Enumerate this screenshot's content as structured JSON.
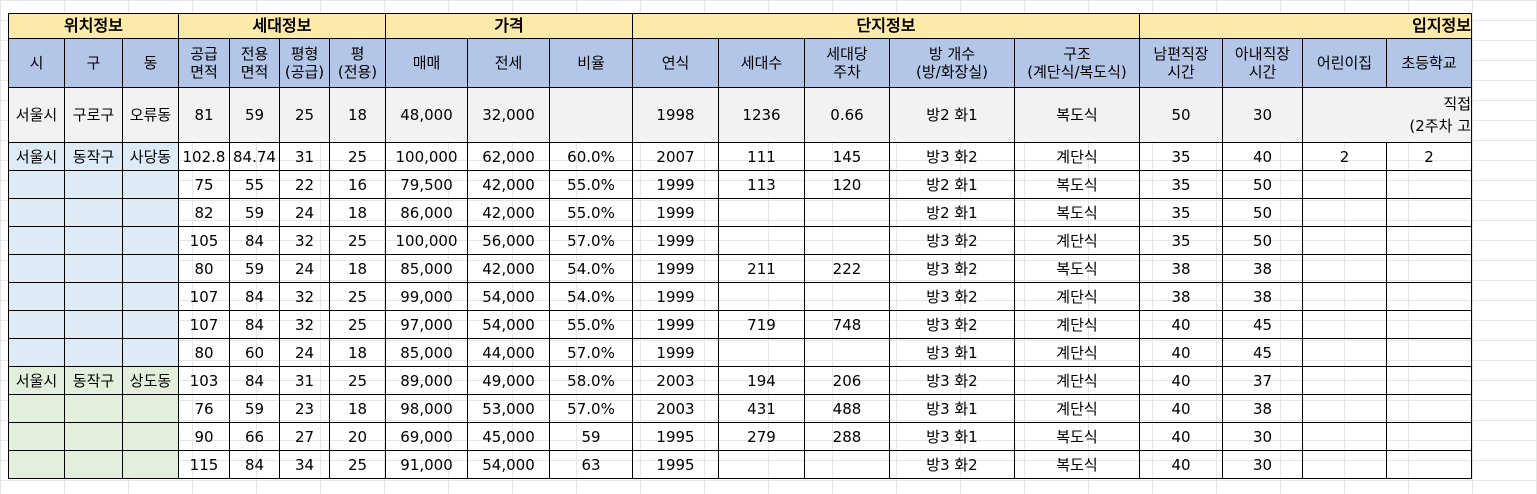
{
  "groups": {
    "location": "위치정보",
    "household": "세대정보",
    "price": "가격",
    "complex": "단지정보",
    "site": "입지정보"
  },
  "headers": {
    "si": "시",
    "gu": "구",
    "dong": "동",
    "supply_area_1": "공급",
    "supply_area_2": "면적",
    "exclusive_area_1": "전용",
    "exclusive_area_2": "면적",
    "pyeong_supply_1": "평형",
    "pyeong_supply_2": "(공급)",
    "pyeong_excl_1": "평",
    "pyeong_excl_2": "(전용)",
    "sale": "매매",
    "jeonse": "전세",
    "ratio": "비율",
    "year": "연식",
    "households": "세대수",
    "parking_1": "세대당",
    "parking_2": "주차",
    "rooms_1": "방 개수",
    "rooms_2": "(방/화장실)",
    "structure_1": "구조",
    "structure_2": "(계단식/복도식)",
    "husband_1": "남편직장",
    "husband_2": "시간",
    "wife_1": "아내직장",
    "wife_2": "시간",
    "daycare": "어린이집",
    "elementary": "초등학교"
  },
  "example_row": {
    "si": "서울시",
    "gu": "구로구",
    "dong": "오류동",
    "supply": "81",
    "excl": "59",
    "py_supply": "25",
    "py_excl": "18",
    "sale": "48,000",
    "jeonse": "32,000",
    "ratio": "",
    "year": "1998",
    "households": "1236",
    "parking": "0.66",
    "rooms": "방2 화1",
    "structure": "복도식",
    "husband": "50",
    "wife": "30",
    "note_1": "직접",
    "note_2": "(2주차 고"
  },
  "rows": [
    {
      "si": "서울시",
      "gu": "동작구",
      "dong": "사당동",
      "supply": "102.8",
      "excl": "84.74",
      "py_supply": "31",
      "py_excl": "25",
      "sale": "100,000",
      "jeonse": "62,000",
      "ratio": "60.0%",
      "year": "2007",
      "households": "111",
      "parking": "145",
      "rooms": "방3 화2",
      "structure": "계단식",
      "husband": "35",
      "wife": "40",
      "daycare": "2",
      "elementary": "2"
    },
    {
      "si": "",
      "gu": "",
      "dong": "",
      "supply": "75",
      "excl": "55",
      "py_supply": "22",
      "py_excl": "16",
      "sale": "79,500",
      "jeonse": "42,000",
      "ratio": "55.0%",
      "year": "1999",
      "households": "113",
      "parking": "120",
      "rooms": "방2 화1",
      "structure": "복도식",
      "husband": "35",
      "wife": "50",
      "daycare": "",
      "elementary": ""
    },
    {
      "si": "",
      "gu": "",
      "dong": "",
      "supply": "82",
      "excl": "59",
      "py_supply": "24",
      "py_excl": "18",
      "sale": "86,000",
      "jeonse": "42,000",
      "ratio": "55.0%",
      "year": "1999",
      "households": "",
      "parking": "",
      "rooms": "방2 화1",
      "structure": "복도식",
      "husband": "35",
      "wife": "50",
      "daycare": "",
      "elementary": ""
    },
    {
      "si": "",
      "gu": "",
      "dong": "",
      "supply": "105",
      "excl": "84",
      "py_supply": "32",
      "py_excl": "25",
      "sale": "100,000",
      "jeonse": "56,000",
      "ratio": "57.0%",
      "year": "1999",
      "households": "",
      "parking": "",
      "rooms": "방3 화2",
      "structure": "계단식",
      "husband": "35",
      "wife": "50",
      "daycare": "",
      "elementary": ""
    },
    {
      "si": "",
      "gu": "",
      "dong": "",
      "supply": "80",
      "excl": "59",
      "py_supply": "24",
      "py_excl": "18",
      "sale": "85,000",
      "jeonse": "42,000",
      "ratio": "54.0%",
      "year": "1999",
      "households": "211",
      "parking": "222",
      "rooms": "방3 화2",
      "structure": "복도식",
      "husband": "38",
      "wife": "38",
      "daycare": "",
      "elementary": ""
    },
    {
      "si": "",
      "gu": "",
      "dong": "",
      "supply": "107",
      "excl": "84",
      "py_supply": "32",
      "py_excl": "25",
      "sale": "99,000",
      "jeonse": "54,000",
      "ratio": "54.0%",
      "year": "1999",
      "households": "",
      "parking": "",
      "rooms": "방3 화2",
      "structure": "계단식",
      "husband": "38",
      "wife": "38",
      "daycare": "",
      "elementary": ""
    },
    {
      "si": "",
      "gu": "",
      "dong": "",
      "supply": "107",
      "excl": "84",
      "py_supply": "32",
      "py_excl": "25",
      "sale": "97,000",
      "jeonse": "54,000",
      "ratio": "55.0%",
      "year": "1999",
      "households": "719",
      "parking": "748",
      "rooms": "방3 화2",
      "structure": "계단식",
      "husband": "40",
      "wife": "45",
      "daycare": "",
      "elementary": ""
    },
    {
      "si": "",
      "gu": "",
      "dong": "",
      "supply": "80",
      "excl": "60",
      "py_supply": "24",
      "py_excl": "18",
      "sale": "85,000",
      "jeonse": "44,000",
      "ratio": "57.0%",
      "year": "1999",
      "households": "",
      "parking": "",
      "rooms": "방3 화1",
      "structure": "계단식",
      "husband": "40",
      "wife": "45",
      "daycare": "",
      "elementary": ""
    },
    {
      "si": "서울시",
      "gu": "동작구",
      "dong": "상도동",
      "supply": "103",
      "excl": "84",
      "py_supply": "31",
      "py_excl": "25",
      "sale": "89,000",
      "jeonse": "49,000",
      "ratio": "58.0%",
      "year": "2003",
      "households": "194",
      "parking": "206",
      "rooms": "방3 화2",
      "structure": "계단식",
      "husband": "40",
      "wife": "37",
      "daycare": "",
      "elementary": ""
    },
    {
      "si": "",
      "gu": "",
      "dong": "",
      "supply": "76",
      "excl": "59",
      "py_supply": "23",
      "py_excl": "18",
      "sale": "98,000",
      "jeonse": "53,000",
      "ratio": "57.0%",
      "year": "2003",
      "households": "431",
      "parking": "488",
      "rooms": "방3 화1",
      "structure": "계단식",
      "husband": "40",
      "wife": "38",
      "daycare": "",
      "elementary": ""
    },
    {
      "si": "",
      "gu": "",
      "dong": "",
      "supply": "90",
      "excl": "66",
      "py_supply": "27",
      "py_excl": "20",
      "sale": "69,000",
      "jeonse": "45,000",
      "ratio": "59",
      "year": "1995",
      "households": "279",
      "parking": "288",
      "rooms": "방3 화1",
      "structure": "복도식",
      "husband": "40",
      "wife": "30",
      "daycare": "",
      "elementary": ""
    },
    {
      "si": "",
      "gu": "",
      "dong": "",
      "supply": "115",
      "excl": "84",
      "py_supply": "34",
      "py_excl": "25",
      "sale": "91,000",
      "jeonse": "54,000",
      "ratio": "63",
      "year": "1995",
      "households": "",
      "parking": "",
      "rooms": "방3 화2",
      "structure": "복도식",
      "husband": "40",
      "wife": "30",
      "daycare": "",
      "elementary": ""
    }
  ],
  "row_groups": [
    "blue",
    "blue",
    "blue",
    "blue",
    "blue",
    "blue",
    "blue",
    "blue",
    "green",
    "green",
    "green",
    "green"
  ],
  "colors": {
    "group_header": "#fde9a9",
    "sub_header": "#b4c6e7",
    "example_row": "#f2f2f2",
    "sadang_fill": "#ddebf7",
    "sangdo_fill": "#e2efda"
  }
}
